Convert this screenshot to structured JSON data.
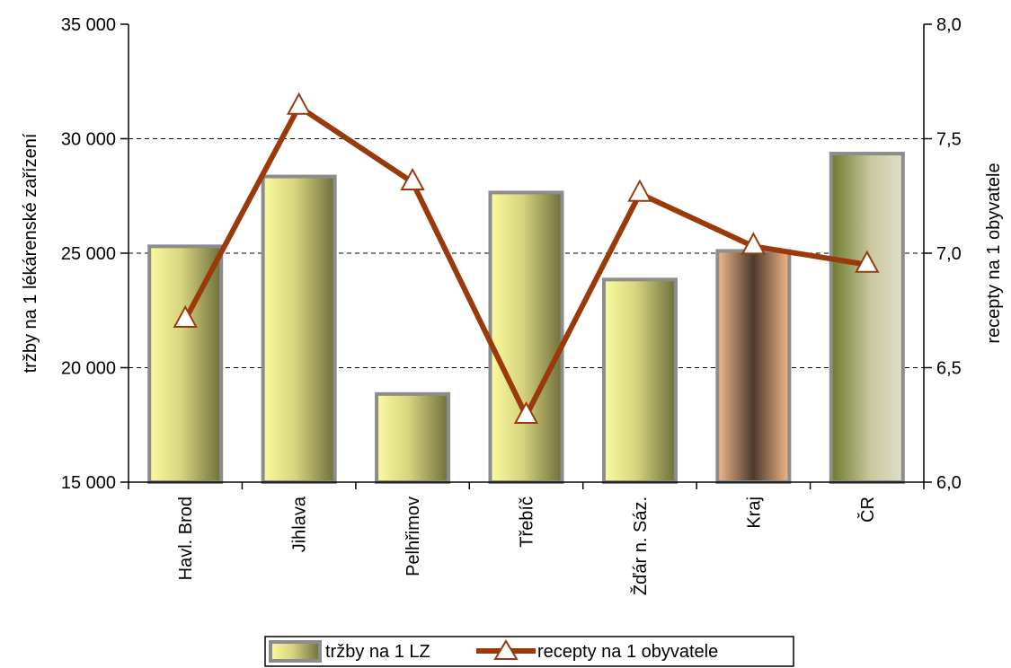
{
  "chart_data": {
    "type": "bar",
    "categories": [
      "Havl. Brod",
      "Jihlava",
      "Pelhřimov",
      "Třebíč",
      "Žďár n. Sáz.",
      "Kraj",
      "ČR"
    ],
    "series": [
      {
        "name": "tržby na 1 LZ",
        "type": "bar",
        "axis": "left",
        "values": [
          25300,
          28350,
          18850,
          27650,
          23850,
          25100,
          29350
        ]
      },
      {
        "name": "recepty na 1 obyvatele",
        "type": "line",
        "axis": "right",
        "values": [
          6.71,
          7.64,
          7.31,
          6.29,
          7.26,
          7.03,
          6.95
        ]
      }
    ],
    "ylabel": "tržby na 1 lékárenské zařízení",
    "ylabel_right": "recepty na 1 obyvatele",
    "ylim": [
      15000,
      35000
    ],
    "ylim_right": [
      6.0,
      8.0
    ],
    "yticks": [
      "15 000",
      "20 000",
      "25 000",
      "30 000",
      "35 000"
    ],
    "yticks_right": [
      "6,0",
      "6,5",
      "7,0",
      "7,5",
      "8,0"
    ],
    "grid": "horizontal dashed",
    "legend_position": "bottom",
    "colors": {
      "bar_light": "#fbfba0",
      "bar_dark": "#6e6e3c",
      "bar_border": "#8c8c8c",
      "kraj_light": "#f5b98a",
      "kraj_dark": "#4a3a2e",
      "cr_light": "#e0e0c8",
      "cr_dark": "#6e7a28",
      "line": "#9a3a0a",
      "marker_fill": "#ffffff"
    }
  }
}
